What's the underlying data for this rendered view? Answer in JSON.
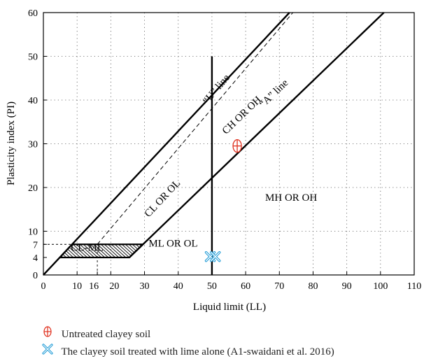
{
  "chart_data": {
    "type": "line",
    "title": "",
    "xlabel": "Liquid limit (LL)",
    "ylabel": "Plasticity index (PI)",
    "xlim": [
      0,
      110
    ],
    "ylim": [
      0,
      60
    ],
    "x_ticks": [
      0,
      10,
      16,
      20,
      30,
      40,
      50,
      60,
      70,
      80,
      90,
      100,
      110
    ],
    "x_tick_labels": [
      "0",
      "10",
      "16",
      "20",
      "30",
      "40",
      "50",
      "60",
      "70",
      "80",
      "90",
      "100",
      "110"
    ],
    "y_ticks": [
      0,
      4,
      7,
      10,
      20,
      30,
      40,
      50,
      60
    ],
    "grid": "dotted, 10-unit",
    "lines": [
      {
        "name": "“A” line",
        "style": "solid",
        "points": [
          [
            25.5,
            4
          ],
          [
            101,
            60
          ]
        ]
      },
      {
        "name": "“U” line",
        "style": "dashed",
        "points": [
          [
            16,
            7
          ],
          [
            74,
            60
          ]
        ]
      },
      {
        "name": "left boundary",
        "style": "solid",
        "points": [
          [
            0,
            0
          ],
          [
            73,
            60
          ]
        ]
      },
      {
        "name": "LL = 50",
        "style": "solid",
        "points": [
          [
            50,
            0
          ],
          [
            50,
            50
          ]
        ]
      },
      {
        "name": "PI = 7",
        "style": "dotted",
        "points": [
          [
            0,
            7
          ],
          [
            16,
            7
          ]
        ]
      },
      {
        "name": "LL = 16",
        "style": "dotted",
        "points": [
          [
            16,
            0
          ],
          [
            16,
            7
          ]
        ]
      }
    ],
    "regions": [
      {
        "label": "CL-ML",
        "x": 13,
        "y": 5.5
      },
      {
        "label": "ML OR OL",
        "x": 38.5,
        "y": 6.5
      },
      {
        "label": "CL OR OL",
        "x": 36,
        "y": 17,
        "rotate": true
      },
      {
        "label": "CH OR OH",
        "x": 59.5,
        "y": 36,
        "rotate": true
      },
      {
        "label": "MH OR OH",
        "x": 73.5,
        "y": 17
      },
      {
        "label": "“U” line",
        "x": 52,
        "y": 42,
        "rotate": true
      },
      {
        "label": "“A” line",
        "x": 69,
        "y": 41,
        "rotate": true
      }
    ],
    "series": [
      {
        "name": "Untreated clayey soil",
        "marker": "circle-plus",
        "color": "#e0301e",
        "points": [
          [
            57.5,
            29.5
          ]
        ]
      },
      {
        "name": "The clayey soil treated with lime alone (A1-swaidani et al. 2016)",
        "marker": "x-cross",
        "color": "#1f9bd6",
        "points": [
          [
            49.5,
            4.2
          ],
          [
            51,
            4.2
          ]
        ]
      }
    ]
  }
}
